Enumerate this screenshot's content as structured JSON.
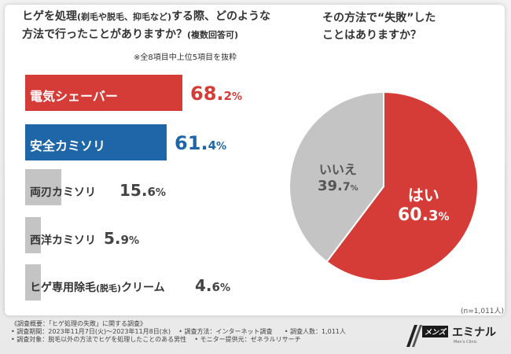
{
  "question_left": {
    "line1_a": "ヒゲを処理",
    "line1_b": "(剃毛や脱毛、抑毛など)",
    "line1_c": "する際、どのような",
    "line2_a": "方法で行ったことがありますか？",
    "line2_b": "(複数回答可)"
  },
  "question_right": {
    "line1": "その方法で“失敗”した",
    "line2": "ことはありますか？"
  },
  "note": "※全8項目中上位5項目を抜粋",
  "n_note": "(n=1,011人)",
  "footer": {
    "row1": "《調査概要：「ヒゲ処理の失敗」に関する調査》",
    "row2_a": "• 調査期間：2023年11月7日(火)〜2023年11月8日(水)",
    "row2_b": "• 調査方法：インターネット調査",
    "row2_c": "• 調査人数：1,011人",
    "row3_a": "• 調査対象：脱毛以外の方法でヒゲを処理したことのある男性",
    "row3_b": "• モニター提供元：ゼネラルリサーチ"
  },
  "logo": {
    "tag": "メンズ",
    "name": "エミナル",
    "sub": "Men's Clinic"
  },
  "colors": {
    "red": "#d53c37",
    "blue": "#1f66a8",
    "gray": "#c4c4c4"
  },
  "chart_data": [
    {
      "type": "bar",
      "orientation": "horizontal",
      "title": "ヒゲを処理(剃毛や脱毛、抑毛など)する際、どのような方法で行ったことがありますか？(複数回答可)",
      "categories": [
        "電気シェーバー",
        "安全カミソリ",
        "両刃カミソリ",
        "西洋カミソリ",
        "ヒゲ専用除毛(脱毛)クリーム"
      ],
      "category_parts": [
        [
          "電気シェーバー"
        ],
        [
          "安全カミソリ"
        ],
        [
          "両刃カミソリ"
        ],
        [
          "西洋カミソリ"
        ],
        [
          "ヒゲ専用除毛",
          "(脱毛)",
          "クリーム"
        ]
      ],
      "values": [
        68.2,
        61.4,
        15.6,
        5.9,
        4.6
      ],
      "value_labels": [
        [
          "68.",
          "2",
          "%"
        ],
        [
          "61.",
          "4",
          "%"
        ],
        [
          "15.",
          "6",
          "%"
        ],
        [
          "5.",
          "9",
          "%"
        ],
        [
          "4.",
          "6",
          "%"
        ]
      ],
      "unit": "%",
      "xlim": [
        0,
        100
      ]
    },
    {
      "type": "pie",
      "title": "その方法で“失敗”したことはありますか？",
      "labels": [
        "はい",
        "いいえ"
      ],
      "values": [
        60.3,
        39.7
      ],
      "value_labels": [
        [
          "60.",
          "3",
          "%"
        ],
        [
          "39.",
          "7",
          "%"
        ]
      ],
      "unit": "%"
    }
  ]
}
